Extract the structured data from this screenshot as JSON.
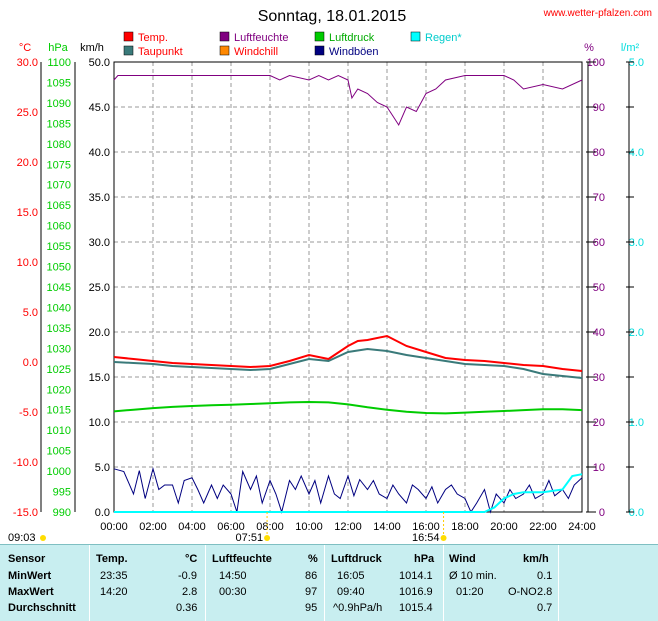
{
  "chart_data": {
    "type": "line",
    "title": "Sonntag, 18.01.2015",
    "source": "www.wetter-pfalzen.com",
    "x_ticks": [
      "00:00",
      "02:00",
      "04:00",
      "06:00",
      "08:00",
      "10:00",
      "12:00",
      "14:00",
      "16:00",
      "18:00",
      "20:00",
      "22:00",
      "24:00"
    ],
    "xlim": [
      0,
      24
    ],
    "axes": [
      {
        "unit": "°C",
        "color": "#ff0000",
        "ylim": [
          -15,
          30
        ],
        "ticks": [
          "30.0",
          "25.0",
          "20.0",
          "15.0",
          "10.0",
          "5.0",
          "0.0",
          "-5.0",
          "-10.0",
          "-15.0"
        ]
      },
      {
        "unit": "hPa",
        "color": "#00cc00",
        "ylim": [
          990,
          1100
        ],
        "ticks": [
          "1100",
          "1095",
          "1090",
          "1085",
          "1080",
          "1075",
          "1070",
          "1065",
          "1060",
          "1055",
          "1050",
          "1045",
          "1040",
          "1035",
          "1030",
          "1025",
          "1020",
          "1015",
          "1010",
          "1005",
          "1000",
          "995",
          "990"
        ]
      },
      {
        "unit": "km/h",
        "color": "#000000",
        "ylim": [
          0,
          50
        ],
        "ticks": [
          "50.0",
          "45.0",
          "40.0",
          "35.0",
          "30.0",
          "25.0",
          "20.0",
          "15.0",
          "10.0",
          "5.0",
          "0.0"
        ]
      },
      {
        "unit": "%",
        "color": "#800080",
        "ylim": [
          0,
          100
        ],
        "ticks": [
          "100",
          "90",
          "80",
          "70",
          "60",
          "50",
          "40",
          "30",
          "20",
          "10",
          "0"
        ]
      },
      {
        "unit": "l/m²",
        "color": "#00dddd",
        "ylim": [
          0,
          5
        ],
        "ticks": [
          "5.0",
          "4.0",
          "3.0",
          "2.0",
          "1.0",
          "0.0"
        ]
      }
    ],
    "legend": [
      {
        "name": "Temp.",
        "color": "#ff0000",
        "text_color": "#ff0000"
      },
      {
        "name": "Taupunkt",
        "color": "#3a7a7a",
        "text_color": "#ff0000"
      },
      {
        "name": "Luftfeuchte",
        "color": "#800080",
        "text_color": "#800080"
      },
      {
        "name": "Windchill",
        "color": "#ff8800",
        "text_color": "#ff0000"
      },
      {
        "name": "Luftdruck",
        "color": "#00cc00",
        "text_color": "#00aa00"
      },
      {
        "name": "Windböen",
        "color": "#000080",
        "text_color": "#000080"
      },
      {
        "name": "Regen*",
        "color": "#00ffff",
        "text_color": "#00cccc"
      }
    ],
    "sun": {
      "sunrise": "07:51",
      "sunset": "16:54",
      "marker_left": "09:03"
    },
    "series": [
      {
        "name": "Temp.",
        "axis": "°C",
        "color": "#ff0000",
        "x": [
          0,
          1,
          2,
          3,
          4,
          5,
          6,
          7,
          8,
          9,
          10,
          11,
          12,
          12.5,
          13,
          14,
          15,
          16,
          17,
          18,
          19,
          20,
          21,
          22,
          23,
          24
        ],
        "y": [
          0.5,
          0.3,
          0.1,
          -0.1,
          -0.2,
          -0.3,
          -0.4,
          -0.5,
          -0.4,
          0.1,
          0.7,
          0.3,
          1.6,
          2.1,
          2.2,
          2.6,
          1.6,
          1.0,
          0.4,
          0.2,
          0.1,
          -0.1,
          -0.3,
          -0.4,
          -0.7,
          -0.9
        ]
      },
      {
        "name": "Taupunkt",
        "axis": "°C",
        "color": "#3a7a7a",
        "x": [
          0,
          1,
          2,
          3,
          4,
          5,
          6,
          7,
          8,
          9,
          10,
          11,
          12,
          13,
          14,
          15,
          16,
          17,
          18,
          19,
          20,
          21,
          22,
          23,
          24
        ],
        "y": [
          0.0,
          -0.1,
          -0.2,
          -0.4,
          -0.5,
          -0.6,
          -0.7,
          -0.8,
          -0.7,
          -0.2,
          0.3,
          0.1,
          1.0,
          1.3,
          1.1,
          0.7,
          0.4,
          0.1,
          -0.2,
          -0.3,
          -0.4,
          -0.7,
          -1.2,
          -1.4,
          -1.6
        ]
      },
      {
        "name": "Luftfeuchte",
        "axis": "%",
        "color": "#800080",
        "x": [
          0,
          0.2,
          1,
          2,
          3,
          4,
          5,
          6,
          7,
          8,
          8.5,
          9,
          10,
          10.5,
          11,
          11.5,
          12,
          12.2,
          12.5,
          13,
          13.5,
          14,
          14.3,
          14.6,
          15,
          15.5,
          16,
          16.5,
          17,
          18,
          19,
          20,
          20.5,
          21,
          22,
          23,
          24
        ],
        "y": [
          96,
          97,
          97,
          97,
          97,
          97,
          97,
          97,
          97,
          97,
          96,
          97,
          96,
          97,
          96,
          97,
          96,
          92,
          94,
          93,
          91,
          90,
          88,
          86,
          90,
          89,
          93,
          94,
          96,
          97,
          97,
          97,
          96,
          94,
          95,
          94,
          96
        ]
      },
      {
        "name": "Luftdruck",
        "axis": "hPa",
        "color": "#00cc00",
        "x": [
          0,
          1,
          2,
          3,
          4,
          5,
          6,
          7,
          8,
          9,
          10,
          11,
          12,
          13,
          14,
          15,
          16,
          17,
          18,
          19,
          20,
          21,
          22,
          23,
          24
        ],
        "y": [
          1014.6,
          1015.0,
          1015.4,
          1015.7,
          1015.9,
          1016.1,
          1016.2,
          1016.4,
          1016.6,
          1016.8,
          1016.9,
          1016.8,
          1016.3,
          1015.6,
          1015.0,
          1014.5,
          1014.2,
          1014.1,
          1014.3,
          1014.5,
          1014.7,
          1014.9,
          1015.1,
          1015.1,
          1014.9
        ]
      },
      {
        "name": "Windböen",
        "axis": "km/h",
        "color": "#000080",
        "x": [
          0,
          0.5,
          1,
          1.3,
          1.6,
          2,
          2.3,
          2.6,
          3,
          3.3,
          3.6,
          4,
          4.3,
          4.6,
          5,
          5.3,
          5.6,
          6,
          6.3,
          6.6,
          7,
          7.3,
          7.6,
          8,
          8.3,
          8.6,
          9,
          9.3,
          9.6,
          10,
          10.3,
          10.6,
          11,
          11.3,
          11.6,
          12,
          12.3,
          12.6,
          13,
          13.3,
          13.6,
          14,
          14.3,
          14.6,
          15,
          15.3,
          15.6,
          16,
          16.3,
          16.6,
          17,
          17.3,
          17.6,
          18,
          18.3,
          18.6,
          19,
          19.3,
          19.6,
          20,
          20.3,
          20.6,
          21,
          21.3,
          21.6,
          22,
          22.3,
          22.6,
          23,
          23.3,
          23.6,
          24
        ],
        "y": [
          4.8,
          4.5,
          2.0,
          4.6,
          1.5,
          4.8,
          2.5,
          3.0,
          3.0,
          1.0,
          3.5,
          3.8,
          2.5,
          1.0,
          3.0,
          1.5,
          3.0,
          2.0,
          0.0,
          4.5,
          2.5,
          4.0,
          1.0,
          3.5,
          2.0,
          0.0,
          3.5,
          2.5,
          4.0,
          2.0,
          3.5,
          1.0,
          4.0,
          2.0,
          1.5,
          4.0,
          1.8,
          3.6,
          2.5,
          3.5,
          2.0,
          1.5,
          3.0,
          2.0,
          1.0,
          3.0,
          2.5,
          1.5,
          2.8,
          1.0,
          2.5,
          3.0,
          2.0,
          1.5,
          0.0,
          1.0,
          2.5,
          0.0,
          2.0,
          1.0,
          2.5,
          1.5,
          2.0,
          3.0,
          1.5,
          2.0,
          3.5,
          1.8,
          2.5,
          1.5,
          3.0,
          3.8
        ]
      },
      {
        "name": "Regen*",
        "axis": "l/m²",
        "color": "#00ffff",
        "x": [
          0,
          19,
          19.5,
          20,
          20.5,
          21,
          22,
          23,
          23.5,
          24
        ],
        "y": [
          0,
          0,
          0.05,
          0.15,
          0.2,
          0.22,
          0.22,
          0.25,
          0.4,
          0.42
        ]
      }
    ]
  },
  "stats": {
    "headers": {
      "sensor": "Sensor",
      "temp": "Temp.",
      "temp_unit": "°C",
      "hum": "Luftfeuchte",
      "hum_unit": "%",
      "press": "Luftdruck",
      "press_unit": "hPa",
      "wind": "Wind",
      "wind_unit": "km/h"
    },
    "rows": [
      {
        "label": "MinWert",
        "temp_time": "23:35",
        "temp_val": "-0.9",
        "hum_time": "14:50",
        "hum_val": "86",
        "press_time": "16:05",
        "press_val": "1014.1",
        "wind_text": "Ø 10 min.",
        "wind_val": "0.1"
      },
      {
        "label": "MaxWert",
        "temp_time": "14:20",
        "temp_val": "2.8",
        "hum_time": "00:30",
        "hum_val": "97",
        "press_time": "09:40",
        "press_val": "1016.9",
        "wind_text": "01:20",
        "wind_dir": "O-NO",
        "wind_val": "2.8"
      },
      {
        "label": "Durchschnitt",
        "temp_time": "",
        "temp_val": "0.36",
        "hum_time": "",
        "hum_val": "95",
        "press_time": "^0.9hPa/h",
        "press_val": "1015.4",
        "wind_text": "",
        "wind_val": "0.7"
      }
    ]
  }
}
